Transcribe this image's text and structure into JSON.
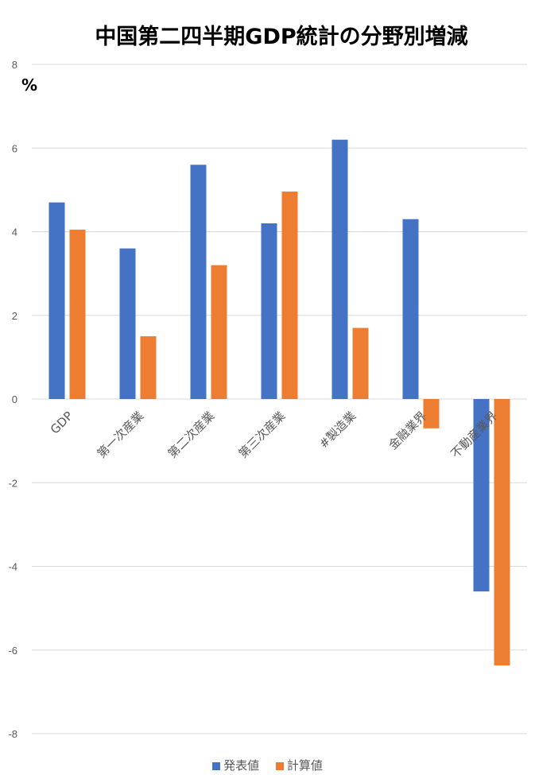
{
  "chart_data": {
    "type": "bar",
    "title": "中国第二四半期GDP統計の分野別増減",
    "ylabel": "%",
    "xlabel": "",
    "ylim": [
      -8,
      8
    ],
    "yticks": [
      8,
      6,
      4,
      2,
      0,
      -2,
      -4,
      -6,
      -8
    ],
    "grid": true,
    "legend_position": "bottom",
    "categories": [
      "GDP",
      "第一次産業",
      "第二次産業",
      "第三次産業",
      "#製造業",
      "金融業界",
      "不動産業界"
    ],
    "series": [
      {
        "name": "発表値",
        "color": "#4472C4",
        "values": [
          4.7,
          3.6,
          5.6,
          4.2,
          6.2,
          4.3,
          -4.6
        ]
      },
      {
        "name": "計算値",
        "color": "#ED7D31",
        "values": [
          4.05,
          1.5,
          3.2,
          4.96,
          1.7,
          -0.7,
          -6.37
        ]
      }
    ]
  }
}
